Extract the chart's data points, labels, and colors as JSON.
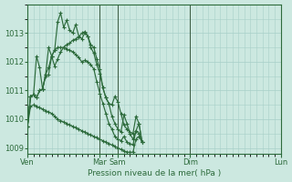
{
  "bg_color": "#cce8e0",
  "grid_color": "#a8cfc8",
  "line_color": "#2d6b3c",
  "marker_color": "#2d6b3c",
  "xlabel": "Pression niveau de la mer( hPa )",
  "ylim": [
    1008.8,
    1014.0
  ],
  "yticks": [
    1009,
    1010,
    1011,
    1012,
    1013
  ],
  "x_day_labels": [
    "Ven",
    "Mar",
    "Sam",
    "Dim",
    "Lun"
  ],
  "x_day_positions": [
    0,
    24,
    30,
    54,
    84
  ],
  "series": [
    [
      1009.75,
      1010.8,
      1010.85,
      1010.75,
      1011.0,
      1011.05,
      1011.5,
      1011.55,
      1012.2,
      1011.85,
      1012.1,
      1012.35,
      1012.5,
      1012.6,
      1012.65,
      1012.75,
      1012.8,
      1012.85,
      1013.0,
      1013.05,
      1012.9,
      1012.5,
      1012.3,
      1011.9,
      1011.6,
      1011.1,
      1010.75,
      1010.55,
      1010.5,
      1010.8,
      1010.6,
      1010.2,
      1009.8,
      1009.65,
      1009.55,
      1009.5,
      1010.1,
      1009.85,
      1009.2
    ],
    [
      1009.75,
      1010.8,
      1010.85,
      1010.75,
      1011.0,
      1011.05,
      1011.55,
      1011.8,
      1012.2,
      1012.4,
      1012.5,
      1012.5,
      1012.5,
      1012.45,
      1012.4,
      1012.35,
      1012.25,
      1012.15,
      1012.0,
      1012.05,
      1012.0,
      1011.9,
      1011.75,
      1011.3,
      1010.9,
      1010.55,
      1010.2,
      1009.85,
      1009.65,
      1009.4,
      1009.3,
      1009.25,
      1009.4,
      1009.2,
      1009.15,
      1009.1,
      1009.6,
      1009.5,
      1009.2
    ],
    [
      1009.75,
      1010.8,
      1010.85,
      1012.2,
      1011.8,
      1011.05,
      1011.55,
      1012.5,
      1012.2,
      1012.4,
      1013.4,
      1013.7,
      1013.2,
      1013.45,
      1013.1,
      1013.0,
      1013.3,
      1012.9,
      1012.8,
      1013.0,
      1012.9,
      1012.6,
      1012.5,
      1012.1,
      1011.75,
      1011.1,
      1010.75,
      1010.55,
      1010.1,
      1009.85,
      1009.65,
      1009.55,
      1010.15,
      1009.85,
      1009.5,
      1009.3,
      1009.6,
      1009.85,
      1009.2
    ],
    [
      1009.75,
      1010.45,
      1010.5,
      1010.45,
      1010.4,
      1010.35,
      1010.3,
      1010.25,
      1010.2,
      1010.1,
      1010.0,
      1009.95,
      1009.9,
      1009.85,
      1009.8,
      1009.75,
      1009.7,
      1009.65,
      1009.6,
      1009.55,
      1009.5,
      1009.45,
      1009.4,
      1009.35,
      1009.3,
      1009.25,
      1009.2,
      1009.15,
      1009.1,
      1009.05,
      1009.0,
      1008.95,
      1008.9,
      1008.85,
      1008.85,
      1008.85,
      1009.3,
      1009.4,
      1009.2
    ]
  ]
}
